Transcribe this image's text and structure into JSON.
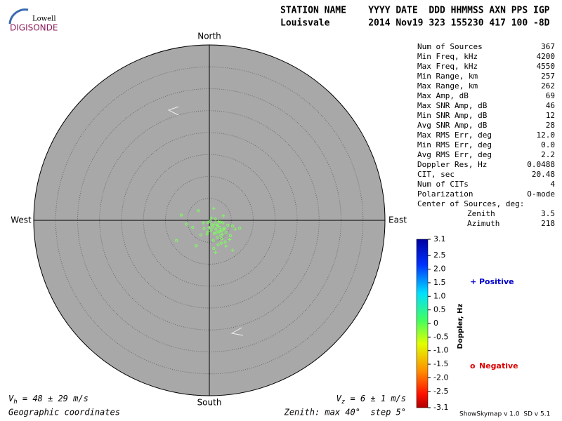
{
  "header": {
    "logo_top": "Lowell",
    "logo_bottom": "DIGISONDE",
    "line1": "STATION NAME    YYYY DATE  DDD HHMMSS AXN PPS IGP",
    "line2": "Louisvale       2014 Nov19 323 155230 417 100 -8D"
  },
  "stats": [
    {
      "label": "Num of Sources",
      "value": "367"
    },
    {
      "label": "Min Freq, kHz",
      "value": "4200"
    },
    {
      "label": "Max Freq, kHz",
      "value": "4550"
    },
    {
      "label": "Min Range, km",
      "value": "257"
    },
    {
      "label": "Max Range, km",
      "value": "262"
    },
    {
      "label": "Max Amp, dB",
      "value": "69"
    },
    {
      "label": "Max SNR Amp, dB",
      "value": "46"
    },
    {
      "label": "Min SNR Amp, dB",
      "value": "12"
    },
    {
      "label": "Avg SNR Amp, dB",
      "value": "28"
    },
    {
      "label": "Max RMS Err, deg",
      "value": "12.0"
    },
    {
      "label": "Min RMS Err, deg",
      "value": "0.0"
    },
    {
      "label": "Avg RMS Err, deg",
      "value": "2.2"
    },
    {
      "label": "Doppler Res, Hz",
      "value": "0.0488"
    },
    {
      "label": "CIT, sec",
      "value": "20.48"
    },
    {
      "label": "Num of CITs",
      "value": "4"
    },
    {
      "label": "Polarization",
      "value": "O-mode"
    }
  ],
  "center": {
    "title": "Center of Sources, deg:",
    "rows": [
      {
        "label": "Zenith",
        "value": "3.5"
      },
      {
        "label": "Azimuth",
        "value": "218"
      }
    ]
  },
  "footer": {
    "vh_symbol": "V",
    "vh_sub": "h",
    "vh_text": " = 48 ± 29 m/s",
    "vz_symbol": "V",
    "vz_sub": "z",
    "vz_text": " = 6 ± 1 m/s",
    "coords": "Geographic coordinates",
    "zenith": "Zenith: max 40°  step 5°",
    "version": "ShowSkymap v 1.0  SD v 5.1"
  },
  "chart_data": {
    "type": "scatter",
    "compass": {
      "north": "North",
      "south": "South",
      "east": "East",
      "west": "West"
    },
    "xlim": [
      -40,
      40
    ],
    "ylim": [
      -40,
      40
    ],
    "rticks": [
      5,
      10,
      15,
      20,
      25,
      30,
      35,
      40
    ],
    "series": [
      {
        "name": "Negative",
        "marker": "o",
        "color": "#7cff5c",
        "legend_color": "#dd0000",
        "x": [
          1.5,
          2.2,
          0.8,
          2.9,
          1.1,
          3.4,
          1.9,
          2.6,
          0.4,
          3.8,
          1.3,
          2.4,
          -0.5,
          4.2,
          1.7,
          2.8,
          0.9,
          3.1,
          -1.2,
          5.3,
          6.9,
          -3.8,
          -5.2,
          -7.5,
          -3.0,
          2.0,
          1.0,
          3.6,
          0.2,
          4.8,
          -1.9,
          1.4,
          2.5,
          -2.5,
          0.6,
          3.3,
          1.8,
          -0.3,
          2.7,
          -6.4
        ],
        "y": [
          -2.0,
          -2.6,
          -1.5,
          -2.3,
          -3.0,
          -1.8,
          -1.2,
          -3.4,
          -2.2,
          -2.8,
          -0.8,
          -1.6,
          -3.1,
          -1.1,
          -2.7,
          -4.2,
          -4.6,
          -0.6,
          -1.9,
          -1.3,
          -1.8,
          -1.6,
          -0.9,
          -4.6,
          -5.8,
          -5.6,
          -6.4,
          -4.9,
          -0.2,
          -3.5,
          -3.3,
          0.3,
          -0.4,
          2.2,
          -1.0,
          -2.0,
          -3.9,
          -0.5,
          -5.2,
          1.2
        ]
      },
      {
        "name": "Positive",
        "marker": "+",
        "color": "#7cff5c",
        "legend_color": "#0000cc",
        "x": [
          1.0,
          2.5,
          3.8,
          5.3,
          0.5,
          1.8,
          -0.3,
          2.9,
          4.6,
          3.2,
          1.4,
          5.9,
          2.1,
          0.0,
          -1.4
        ],
        "y": [
          2.7,
          -2.4,
          -5.9,
          -6.8,
          0.5,
          -1.1,
          -2.6,
          -3.2,
          -4.4,
          1.0,
          -7.3,
          -2.0,
          -0.3,
          -1.7,
          -0.6
        ]
      }
    ],
    "colorbar": {
      "label": "Doppler, Hz",
      "lim": [
        -3.1,
        3.1
      ],
      "ticks": [
        3.1,
        2.5,
        {
          "value": 2,
          "label": "2.0"
        },
        1.5,
        {
          "value": 1,
          "label": "1.0"
        },
        0.5,
        0,
        -0.5,
        {
          "value": -1,
          "label": "-1.0"
        },
        -1.5,
        {
          "value": -2,
          "label": "-2.0"
        },
        -2.5,
        -3.1
      ]
    }
  }
}
